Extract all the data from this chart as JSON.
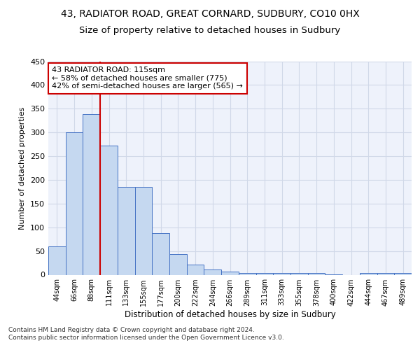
{
  "title1": "43, RADIATOR ROAD, GREAT CORNARD, SUDBURY, CO10 0HX",
  "title2": "Size of property relative to detached houses in Sudbury",
  "xlabel": "Distribution of detached houses by size in Sudbury",
  "ylabel": "Number of detached properties",
  "categories": [
    "44sqm",
    "66sqm",
    "88sqm",
    "111sqm",
    "133sqm",
    "155sqm",
    "177sqm",
    "200sqm",
    "222sqm",
    "244sqm",
    "266sqm",
    "289sqm",
    "311sqm",
    "333sqm",
    "355sqm",
    "378sqm",
    "400sqm",
    "422sqm",
    "444sqm",
    "467sqm",
    "489sqm"
  ],
  "values": [
    60,
    300,
    338,
    272,
    185,
    185,
    88,
    44,
    22,
    11,
    7,
    3,
    3,
    3,
    3,
    3,
    1,
    0,
    3,
    3,
    3
  ],
  "bar_color": "#c5d8f0",
  "bar_edge_color": "#4472c4",
  "grid_color": "#d0d8e8",
  "annotation_text": "43 RADIATOR ROAD: 115sqm\n← 58% of detached houses are smaller (775)\n42% of semi-detached houses are larger (565) →",
  "annotation_box_color": "#ffffff",
  "annotation_box_edge_color": "#cc0000",
  "redline_color": "#cc0000",
  "ylim": [
    0,
    450
  ],
  "yticks": [
    0,
    50,
    100,
    150,
    200,
    250,
    300,
    350,
    400,
    450
  ],
  "footnote": "Contains HM Land Registry data © Crown copyright and database right 2024.\nContains public sector information licensed under the Open Government Licence v3.0.",
  "background_color": "#eef2fb",
  "title1_fontsize": 10,
  "title2_fontsize": 9.5
}
